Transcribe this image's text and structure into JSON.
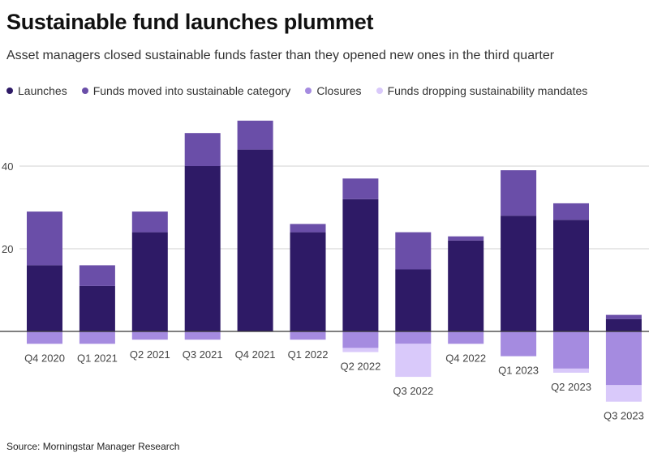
{
  "chart_data": {
    "type": "bar",
    "title": "Sustainable fund launches plummet",
    "subtitle": "Asset managers closed sustainable funds faster than they opened new ones in the third quarter",
    "source": "Source: Morningstar Manager Research",
    "categories": [
      "Q4 2020",
      "Q1 2021",
      "Q2 2021",
      "Q3 2021",
      "Q4 2021",
      "Q1 2022",
      "Q2 2022",
      "Q3 2022",
      "Q4 2022",
      "Q1 2023",
      "Q2 2023",
      "Q3 2023"
    ],
    "series": [
      {
        "name": "Launches",
        "color": "#2e1a66",
        "values": [
          16,
          11,
          24,
          40,
          44,
          24,
          32,
          15,
          22,
          28,
          27,
          3
        ]
      },
      {
        "name": "Funds moved into sustainable category",
        "color": "#6a4ea8",
        "values": [
          13,
          5,
          5,
          8,
          7,
          2,
          5,
          9,
          1,
          11,
          4,
          1
        ]
      },
      {
        "name": "Closures",
        "color": "#a58be0",
        "values": [
          -3,
          -3,
          -2,
          -2,
          0,
          -2,
          -4,
          -3,
          -3,
          -6,
          -9,
          -13
        ]
      },
      {
        "name": "Funds dropping sustainability mandates",
        "color": "#d9c9fa",
        "values": [
          0,
          0,
          0,
          0,
          0,
          0,
          -1,
          -8,
          0,
          0,
          -1,
          -4
        ]
      }
    ],
    "ylim": [
      -17,
      52
    ],
    "yticks": [
      20,
      40
    ],
    "grid": true,
    "legend": "top-left"
  }
}
